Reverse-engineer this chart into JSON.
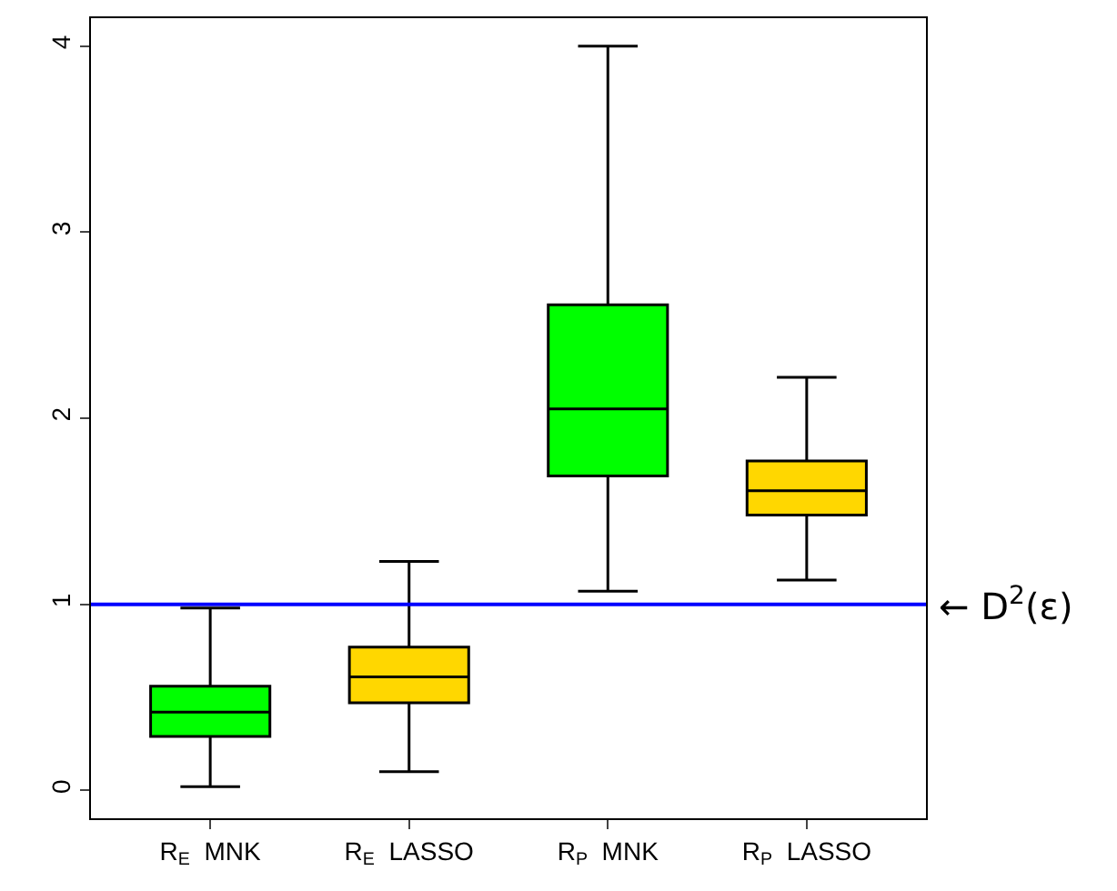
{
  "chart_data": {
    "type": "box",
    "categories": [
      "R$_{E}$  MNK",
      "R$_{E}$  LASSO",
      "R$_{P}$  MNK",
      "R$_{P}$  LASSO"
    ],
    "colors": [
      "#00ff00",
      "#ffd700",
      "#00ff00",
      "#ffd700"
    ],
    "boxes": [
      {
        "low": 0.02,
        "q1": 0.29,
        "median": 0.42,
        "q3": 0.56,
        "high": 0.98
      },
      {
        "low": 0.1,
        "q1": 0.47,
        "median": 0.61,
        "q3": 0.77,
        "high": 1.23
      },
      {
        "low": 1.07,
        "q1": 1.69,
        "median": 2.05,
        "q3": 2.61,
        "high": 4.0
      },
      {
        "low": 1.13,
        "q1": 1.48,
        "median": 1.61,
        "q3": 1.77,
        "high": 2.22
      }
    ],
    "ylim": [
      -0.15,
      4.15
    ],
    "yticks": [
      0,
      1,
      2,
      3,
      4
    ],
    "ref_lines": [
      {
        "axis": "y",
        "value": 1,
        "label": "← D$^{2}$(ε)",
        "color": "#0000ff",
        "line_style": "solid"
      }
    ]
  }
}
